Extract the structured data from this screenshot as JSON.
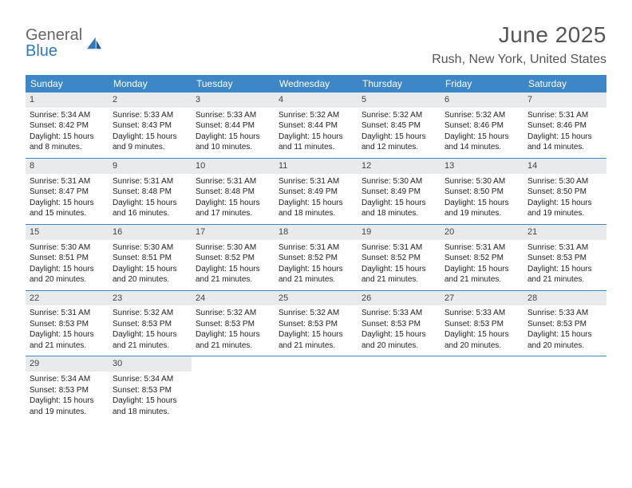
{
  "brand": {
    "name1": "General",
    "name2": "Blue"
  },
  "title": "June 2025",
  "location": "Rush, New York, United States",
  "colors": {
    "header_bar": "#3d87c9",
    "daynum_bg": "#e9eaeb",
    "brand_blue": "#2f78c2",
    "text": "#222222",
    "muted": "#555555"
  },
  "weekdays": [
    "Sunday",
    "Monday",
    "Tuesday",
    "Wednesday",
    "Thursday",
    "Friday",
    "Saturday"
  ],
  "weeks": [
    [
      {
        "n": "1",
        "sr": "Sunrise: 5:34 AM",
        "ss": "Sunset: 8:42 PM",
        "dl": "Daylight: 15 hours and 8 minutes."
      },
      {
        "n": "2",
        "sr": "Sunrise: 5:33 AM",
        "ss": "Sunset: 8:43 PM",
        "dl": "Daylight: 15 hours and 9 minutes."
      },
      {
        "n": "3",
        "sr": "Sunrise: 5:33 AM",
        "ss": "Sunset: 8:44 PM",
        "dl": "Daylight: 15 hours and 10 minutes."
      },
      {
        "n": "4",
        "sr": "Sunrise: 5:32 AM",
        "ss": "Sunset: 8:44 PM",
        "dl": "Daylight: 15 hours and 11 minutes."
      },
      {
        "n": "5",
        "sr": "Sunrise: 5:32 AM",
        "ss": "Sunset: 8:45 PM",
        "dl": "Daylight: 15 hours and 12 minutes."
      },
      {
        "n": "6",
        "sr": "Sunrise: 5:32 AM",
        "ss": "Sunset: 8:46 PM",
        "dl": "Daylight: 15 hours and 14 minutes."
      },
      {
        "n": "7",
        "sr": "Sunrise: 5:31 AM",
        "ss": "Sunset: 8:46 PM",
        "dl": "Daylight: 15 hours and 14 minutes."
      }
    ],
    [
      {
        "n": "8",
        "sr": "Sunrise: 5:31 AM",
        "ss": "Sunset: 8:47 PM",
        "dl": "Daylight: 15 hours and 15 minutes."
      },
      {
        "n": "9",
        "sr": "Sunrise: 5:31 AM",
        "ss": "Sunset: 8:48 PM",
        "dl": "Daylight: 15 hours and 16 minutes."
      },
      {
        "n": "10",
        "sr": "Sunrise: 5:31 AM",
        "ss": "Sunset: 8:48 PM",
        "dl": "Daylight: 15 hours and 17 minutes."
      },
      {
        "n": "11",
        "sr": "Sunrise: 5:31 AM",
        "ss": "Sunset: 8:49 PM",
        "dl": "Daylight: 15 hours and 18 minutes."
      },
      {
        "n": "12",
        "sr": "Sunrise: 5:30 AM",
        "ss": "Sunset: 8:49 PM",
        "dl": "Daylight: 15 hours and 18 minutes."
      },
      {
        "n": "13",
        "sr": "Sunrise: 5:30 AM",
        "ss": "Sunset: 8:50 PM",
        "dl": "Daylight: 15 hours and 19 minutes."
      },
      {
        "n": "14",
        "sr": "Sunrise: 5:30 AM",
        "ss": "Sunset: 8:50 PM",
        "dl": "Daylight: 15 hours and 19 minutes."
      }
    ],
    [
      {
        "n": "15",
        "sr": "Sunrise: 5:30 AM",
        "ss": "Sunset: 8:51 PM",
        "dl": "Daylight: 15 hours and 20 minutes."
      },
      {
        "n": "16",
        "sr": "Sunrise: 5:30 AM",
        "ss": "Sunset: 8:51 PM",
        "dl": "Daylight: 15 hours and 20 minutes."
      },
      {
        "n": "17",
        "sr": "Sunrise: 5:30 AM",
        "ss": "Sunset: 8:52 PM",
        "dl": "Daylight: 15 hours and 21 minutes."
      },
      {
        "n": "18",
        "sr": "Sunrise: 5:31 AM",
        "ss": "Sunset: 8:52 PM",
        "dl": "Daylight: 15 hours and 21 minutes."
      },
      {
        "n": "19",
        "sr": "Sunrise: 5:31 AM",
        "ss": "Sunset: 8:52 PM",
        "dl": "Daylight: 15 hours and 21 minutes."
      },
      {
        "n": "20",
        "sr": "Sunrise: 5:31 AM",
        "ss": "Sunset: 8:52 PM",
        "dl": "Daylight: 15 hours and 21 minutes."
      },
      {
        "n": "21",
        "sr": "Sunrise: 5:31 AM",
        "ss": "Sunset: 8:53 PM",
        "dl": "Daylight: 15 hours and 21 minutes."
      }
    ],
    [
      {
        "n": "22",
        "sr": "Sunrise: 5:31 AM",
        "ss": "Sunset: 8:53 PM",
        "dl": "Daylight: 15 hours and 21 minutes."
      },
      {
        "n": "23",
        "sr": "Sunrise: 5:32 AM",
        "ss": "Sunset: 8:53 PM",
        "dl": "Daylight: 15 hours and 21 minutes."
      },
      {
        "n": "24",
        "sr": "Sunrise: 5:32 AM",
        "ss": "Sunset: 8:53 PM",
        "dl": "Daylight: 15 hours and 21 minutes."
      },
      {
        "n": "25",
        "sr": "Sunrise: 5:32 AM",
        "ss": "Sunset: 8:53 PM",
        "dl": "Daylight: 15 hours and 21 minutes."
      },
      {
        "n": "26",
        "sr": "Sunrise: 5:33 AM",
        "ss": "Sunset: 8:53 PM",
        "dl": "Daylight: 15 hours and 20 minutes."
      },
      {
        "n": "27",
        "sr": "Sunrise: 5:33 AM",
        "ss": "Sunset: 8:53 PM",
        "dl": "Daylight: 15 hours and 20 minutes."
      },
      {
        "n": "28",
        "sr": "Sunrise: 5:33 AM",
        "ss": "Sunset: 8:53 PM",
        "dl": "Daylight: 15 hours and 20 minutes."
      }
    ],
    [
      {
        "n": "29",
        "sr": "Sunrise: 5:34 AM",
        "ss": "Sunset: 8:53 PM",
        "dl": "Daylight: 15 hours and 19 minutes."
      },
      {
        "n": "30",
        "sr": "Sunrise: 5:34 AM",
        "ss": "Sunset: 8:53 PM",
        "dl": "Daylight: 15 hours and 18 minutes."
      },
      null,
      null,
      null,
      null,
      null
    ]
  ]
}
